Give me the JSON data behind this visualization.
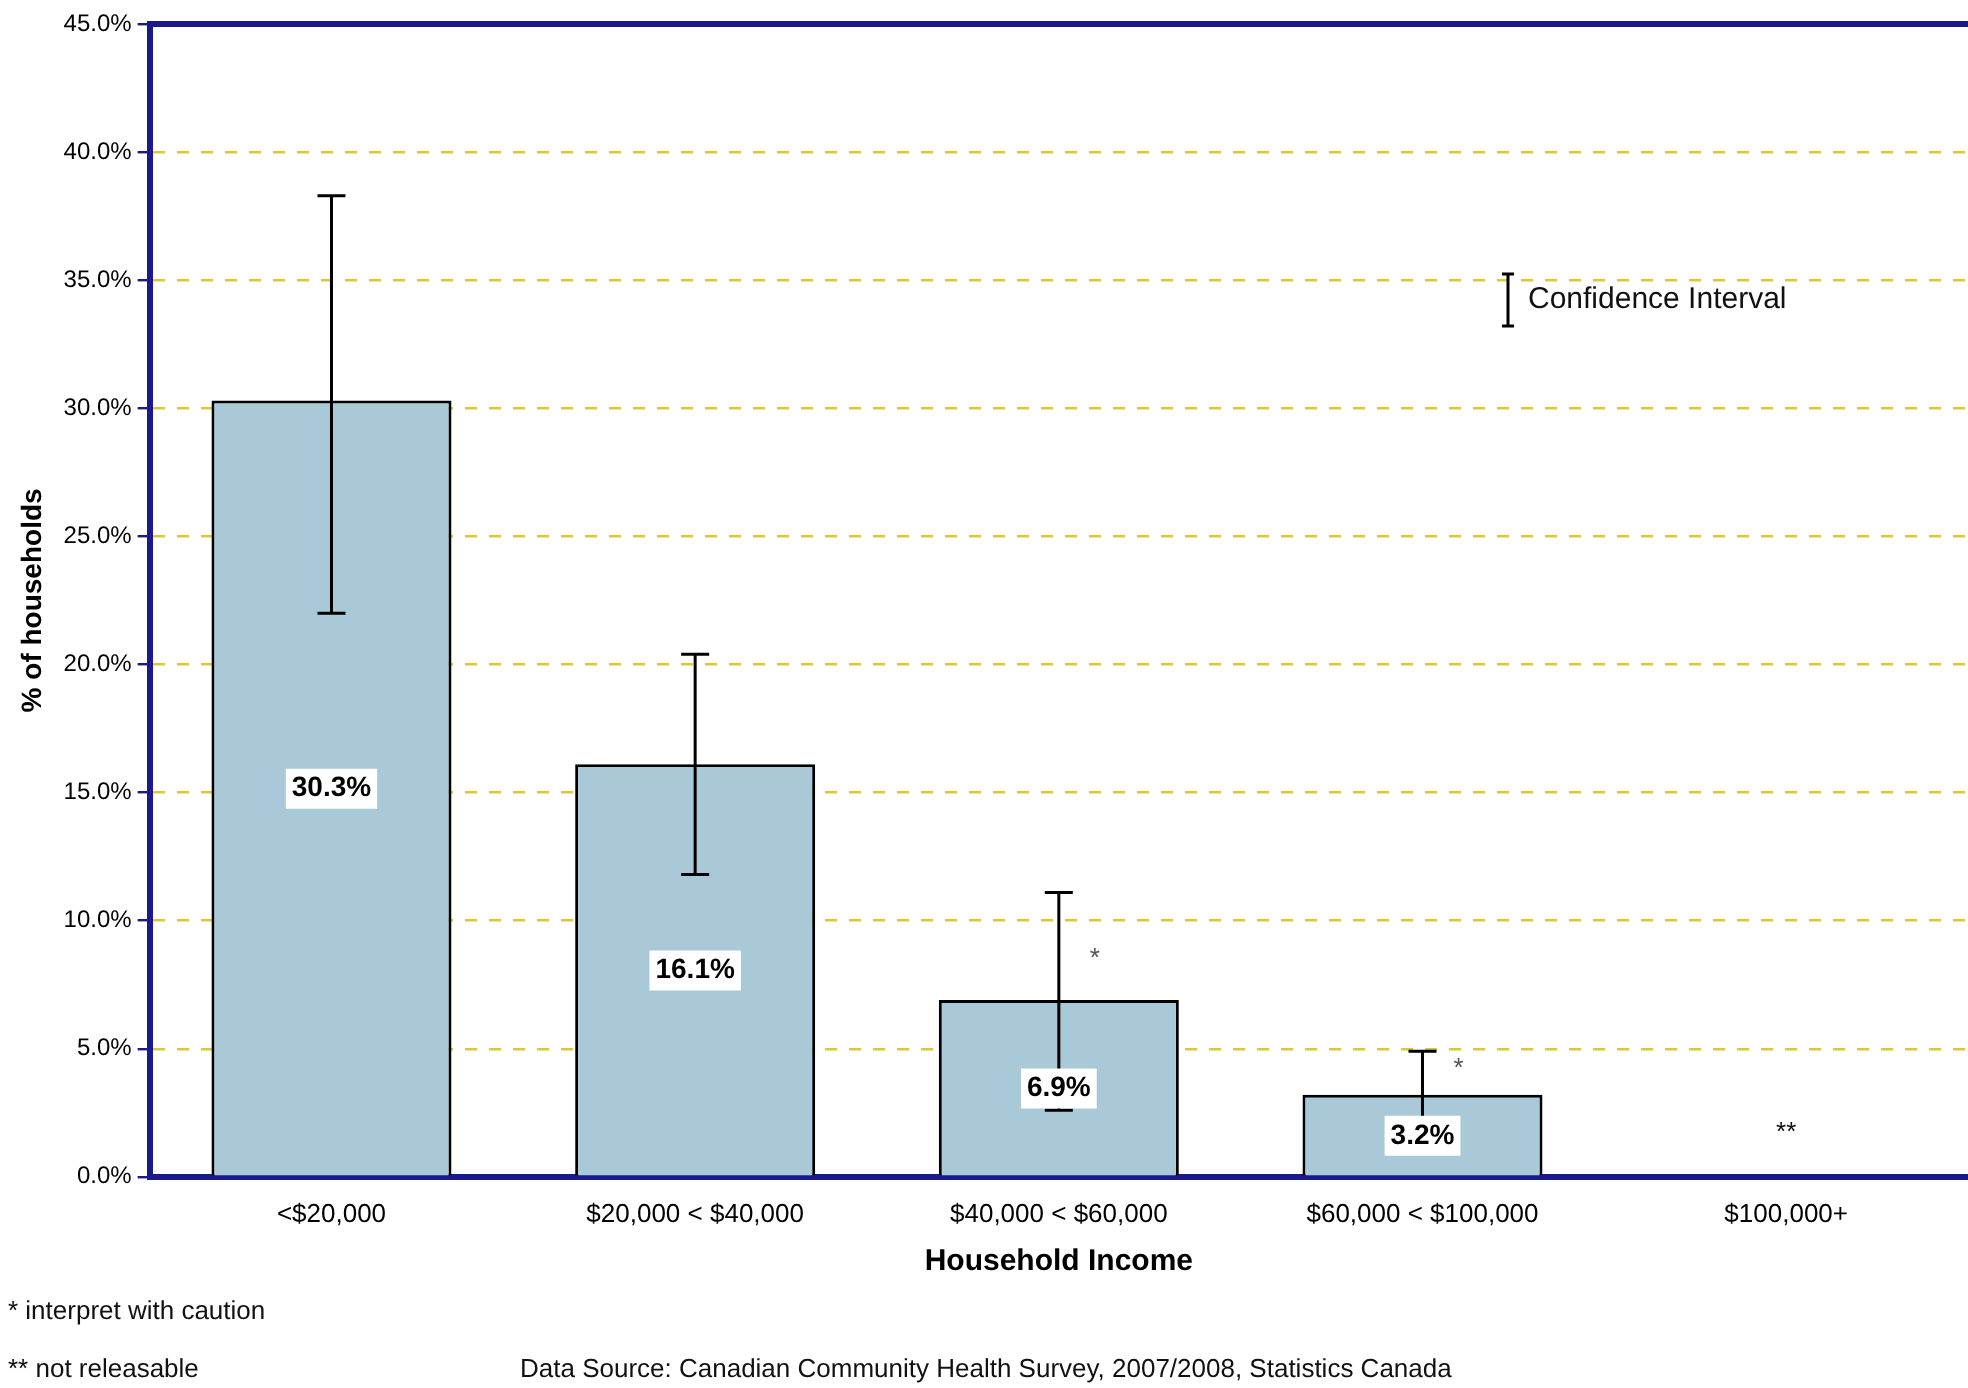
{
  "chart_data": {
    "type": "bar",
    "xlabel": "Household Income",
    "ylabel": "% of households",
    "categories": [
      "<$20,000",
      "$20,000 < $40,000",
      "$40,000 < $60,000",
      "$60,000 < $100,000",
      "$100,000+"
    ],
    "values": [
      30.3,
      16.1,
      6.9,
      3.2,
      null
    ],
    "color": "#a9c8d8",
    "errors": [
      [
        22.0,
        38.3
      ],
      [
        11.8,
        20.4
      ],
      [
        2.6,
        11.1
      ],
      [
        1.5,
        4.9
      ],
      null
    ],
    "value_labels": [
      "30.3%",
      "16.1%",
      "6.9%",
      "3.2%",
      null
    ],
    "ylim": [
      0,
      45
    ],
    "yticks": [
      {
        "value": 0,
        "label": "0.0%"
      },
      {
        "value": 5,
        "label": "5.0%"
      },
      {
        "value": 10,
        "label": "10.0%"
      },
      {
        "value": 15,
        "label": "15.0%"
      },
      {
        "value": 20,
        "label": "20.0%"
      },
      {
        "value": 25,
        "label": "25.0%"
      },
      {
        "value": 30,
        "label": "30.0%"
      },
      {
        "value": 35,
        "label": "35.0%"
      },
      {
        "value": 40,
        "label": "40.0%"
      },
      {
        "value": 45,
        "label": "45.0%"
      }
    ],
    "grid": "y",
    "annotations": [
      {
        "text": "*",
        "x": "$40,000 < $60,000",
        "y": 8.5
      },
      {
        "text": "*",
        "x": "$60,000 < $100,000",
        "y": 4.2
      },
      "**",
      "Confidence Interval",
      "* interpret with caution",
      "** not releasable",
      "Data Source: Canadian Community Health Survey, 2007/2008, Statistics Canada"
    ]
  }
}
